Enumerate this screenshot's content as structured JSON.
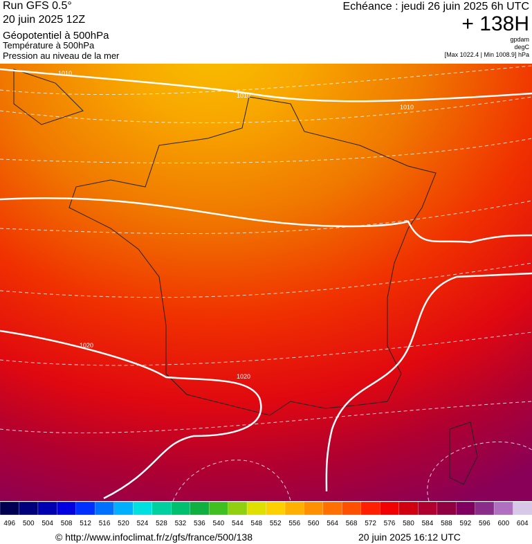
{
  "header": {
    "run": "Run GFS 0.5°",
    "run_date": "20 juin 2025 12Z",
    "field1": "Géopotentiel à 500hPa",
    "field2": "Température à 500hPa",
    "field3": "Pression au niveau de la mer",
    "valid": "Echéance : jeudi 26 juin 2025 6h UTC",
    "lead": "+ 138H",
    "unit1": "gpdam",
    "unit2": "degC",
    "range": "[Max 1022.4 | Min 1008.9] hPa"
  },
  "isobars": [
    "1010",
    "1010",
    "1010",
    "1020",
    "1020"
  ],
  "scale": {
    "labels": [
      496,
      500,
      504,
      508,
      512,
      516,
      520,
      524,
      528,
      532,
      536,
      540,
      544,
      548,
      552,
      556,
      560,
      564,
      568,
      572,
      576,
      580,
      584,
      588,
      592,
      596,
      600,
      604
    ],
    "colors": [
      "#000050",
      "#00007a",
      "#0000b0",
      "#0000e0",
      "#0030ff",
      "#0070ff",
      "#00b0ff",
      "#00e0e0",
      "#00d0a0",
      "#00c070",
      "#10b040",
      "#40c020",
      "#90d010",
      "#e0e000",
      "#ffd000",
      "#ffb000",
      "#ff9000",
      "#ff7000",
      "#ff5000",
      "#ff2000",
      "#f00000",
      "#d00010",
      "#b00030",
      "#900040",
      "#800060",
      "#8a2c8a",
      "#b070c0",
      "#d8c8e8"
    ]
  },
  "footer": {
    "url": "© http://www.infoclimat.fr/z/gfs/france/500/138",
    "stamp": "20 juin 2025 16:12 UTC"
  }
}
